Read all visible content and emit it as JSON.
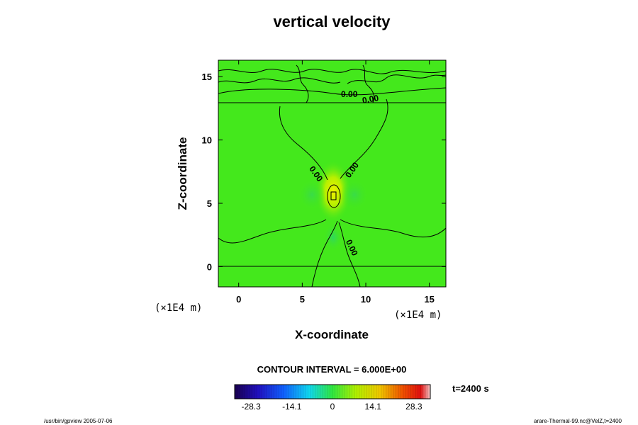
{
  "chart_data": {
    "type": "heatmap",
    "title": "vertical velocity",
    "xlabel": "X-coordinate",
    "ylabel": "Z-coordinate",
    "x_unit": "(×1E4 m)",
    "y_unit": "(×1E4 m)",
    "xlim": [
      -1.6,
      16.3
    ],
    "ylim": [
      -1.6,
      16.3
    ],
    "x_ticks": [
      0,
      5,
      10,
      15
    ],
    "y_ticks": [
      0,
      5,
      10,
      15
    ],
    "contour_interval_label": "CONTOUR INTERVAL = 6.000E+00",
    "contour_labels": [
      {
        "text": "0.00",
        "x": 8.7,
        "y": 13.4,
        "angle": 0
      },
      {
        "text": "0.00",
        "x": 10.4,
        "y": 13.0,
        "angle": -10
      },
      {
        "text": "0.00",
        "x": 5.9,
        "y": 7.2,
        "angle": 55
      },
      {
        "text": "0.00",
        "x": 9.1,
        "y": 7.5,
        "angle": -55
      },
      {
        "text": "0.00",
        "x": 8.7,
        "y": 1.4,
        "angle": 65
      }
    ],
    "features": [
      {
        "name": "updraft core",
        "x": 7.5,
        "y": 5.5,
        "peak": 6.0
      },
      {
        "name": "weak downdraft",
        "x": 7.4,
        "y": 2.8,
        "peak": -2.0
      }
    ],
    "colorbar": {
      "min": -34.0,
      "max": 34.0,
      "tick_values": [
        -28.3,
        -14.1,
        0,
        14.1,
        28.3
      ],
      "tick_labels": [
        "-28.3",
        "-14.1",
        "0",
        "14.1",
        "28.3"
      ],
      "colormap": "rainbow"
    },
    "time_label": "t=2400 s"
  },
  "footer": {
    "left": "/usr/bin/gpview 2005-07-06",
    "right": "arare-Thermal-99.nc@VelZ,t=2400"
  },
  "colors": {
    "field_background": "#44e81c",
    "contour_line": "#000000"
  }
}
